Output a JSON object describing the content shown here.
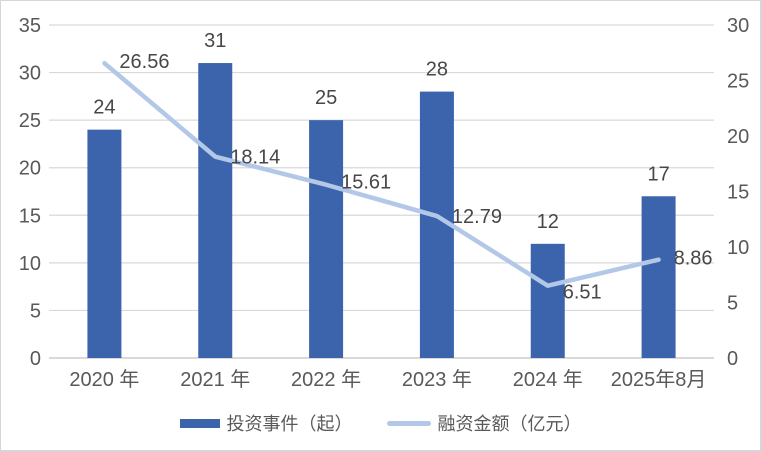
{
  "chart_data": {
    "type": "bar+line combo",
    "title": "",
    "xlabel": "",
    "categories": [
      "2020 年",
      "2021 年",
      "2022 年",
      "2023 年",
      "2024 年",
      "2025年8月"
    ],
    "series": [
      {
        "name": "投资事件（起）",
        "type": "bar",
        "axis": "left",
        "color": "#3c64ac",
        "values": [
          24,
          31,
          25,
          28,
          12,
          17
        ],
        "data_labels": [
          "24",
          "31",
          "25",
          "28",
          "12",
          "17"
        ]
      },
      {
        "name": "融资金额（亿元）",
        "type": "line",
        "axis": "right",
        "color": "#b3c7e7",
        "values": [
          26.56,
          18.14,
          15.61,
          12.79,
          6.51,
          8.86
        ],
        "data_labels": [
          "26.56",
          "18.14",
          "15.61",
          "12.79",
          "6.51",
          "8.86"
        ]
      }
    ],
    "left_axis": {
      "min": 0,
      "max": 35,
      "ticks": [
        0,
        5,
        10,
        15,
        20,
        25,
        30,
        35
      ]
    },
    "right_axis": {
      "min": 0,
      "max": 30,
      "ticks": [
        0,
        5,
        10,
        15,
        20,
        25,
        30
      ]
    },
    "grid": true,
    "gridline_color": "#d9d9d9",
    "axis_label_color": "#595959",
    "data_label_color": "#474747",
    "legend_position": "bottom"
  },
  "legend": {
    "items": [
      {
        "label": "投资事件（起）",
        "swatch": "bar",
        "color": "#3c64ac"
      },
      {
        "label": "融资金额（亿元）",
        "swatch": "line",
        "color": "#b3c7e7"
      }
    ]
  }
}
